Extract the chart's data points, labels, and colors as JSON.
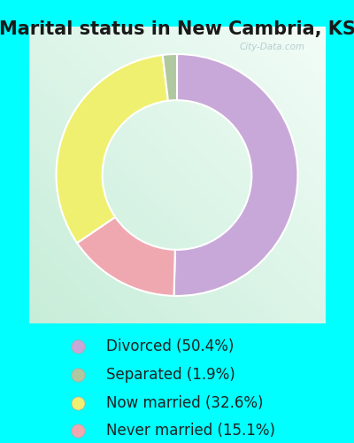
{
  "title": "Marital status in New Cambria, KS",
  "wedge_values": [
    50.4,
    15.1,
    32.6,
    1.9
  ],
  "wedge_colors": [
    "#c8a8d8",
    "#f0a8b0",
    "#f0f070",
    "#b0c8a0"
  ],
  "background_outer": "#00ffff",
  "background_chart_tl": "#e8f8f0",
  "background_chart_br": "#c8e8d8",
  "watermark": "City-Data.com",
  "title_fontsize": 15,
  "legend_fontsize": 12,
  "donut_width": 0.42,
  "legend_items": [
    {
      "color": "#c8a8d8",
      "label": "Divorced (50.4%)"
    },
    {
      "color": "#b0c8a0",
      "label": "Separated (1.9%)"
    },
    {
      "color": "#f0f070",
      "label": "Now married (32.6%)"
    },
    {
      "color": "#f0a8b0",
      "label": "Never married (15.1%)"
    }
  ]
}
